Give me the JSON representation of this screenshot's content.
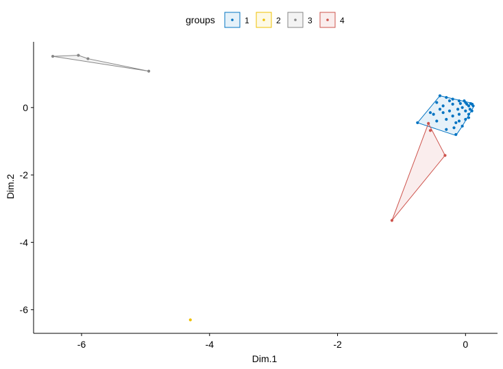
{
  "chart_data": {
    "type": "scatter",
    "title": "",
    "xlabel": "Dim.1",
    "ylabel": "Dim.2",
    "xlim": [
      -6.75,
      0.5
    ],
    "ylim": [
      -6.7,
      1.95
    ],
    "xticks": [
      -6,
      -4,
      -2,
      0
    ],
    "yticks": [
      0,
      -2,
      -4,
      -6
    ],
    "grid": false,
    "legend": {
      "title": "groups",
      "position": "top",
      "entries": [
        "1",
        "2",
        "3",
        "4"
      ]
    },
    "series": [
      {
        "name": "1",
        "color": "#0073C2",
        "points": [
          [
            -0.75,
            -0.45
          ],
          [
            -0.55,
            -0.15
          ],
          [
            -0.4,
            0.35
          ],
          [
            -0.3,
            0.3
          ],
          [
            -0.2,
            0.25
          ],
          [
            -0.1,
            0.2
          ],
          [
            0.0,
            0.15
          ],
          [
            0.1,
            0.1
          ],
          [
            0.12,
            0.05
          ],
          [
            0.1,
            -0.1
          ],
          [
            0.05,
            -0.3
          ],
          [
            -0.05,
            -0.55
          ],
          [
            -0.15,
            -0.8
          ],
          [
            -0.3,
            -0.65
          ],
          [
            -0.45,
            0.15
          ],
          [
            -0.5,
            -0.2
          ],
          [
            -0.45,
            -0.4
          ],
          [
            -0.35,
            -0.15
          ],
          [
            -0.3,
            -0.35
          ],
          [
            -0.25,
            -0.1
          ],
          [
            -0.2,
            0.1
          ],
          [
            -0.2,
            -0.25
          ],
          [
            -0.15,
            -0.45
          ],
          [
            -0.1,
            -0.2
          ],
          [
            -0.05,
            0.0
          ],
          [
            0.0,
            -0.1
          ],
          [
            0.05,
            0.05
          ],
          [
            0.05,
            -0.2
          ],
          [
            0.0,
            -0.35
          ],
          [
            -0.08,
            0.12
          ],
          [
            -0.12,
            -0.05
          ],
          [
            0.02,
            0.1
          ],
          [
            0.07,
            -0.05
          ],
          [
            -0.25,
            0.2
          ],
          [
            -0.35,
            0.05
          ],
          [
            -0.1,
            -0.4
          ],
          [
            0.08,
            0.12
          ],
          [
            -0.02,
            0.2
          ],
          [
            -0.18,
            -0.6
          ],
          [
            -0.4,
            -0.05
          ]
        ],
        "hull": [
          [
            -0.75,
            -0.45
          ],
          [
            -0.4,
            0.35
          ],
          [
            0.12,
            0.12
          ],
          [
            0.12,
            0.0
          ],
          [
            -0.05,
            -0.55
          ],
          [
            -0.15,
            -0.83
          ]
        ]
      },
      {
        "name": "2",
        "color": "#EFC000",
        "points": [
          [
            -4.3,
            -6.3
          ]
        ],
        "hull": []
      },
      {
        "name": "3",
        "color": "#868686",
        "points": [
          [
            -6.45,
            1.52
          ],
          [
            -6.05,
            1.55
          ],
          [
            -5.9,
            1.45
          ],
          [
            -4.95,
            1.08
          ]
        ],
        "hull": [
          [
            -6.45,
            1.52
          ],
          [
            -6.05,
            1.55
          ],
          [
            -5.9,
            1.45
          ],
          [
            -4.95,
            1.08
          ]
        ]
      },
      {
        "name": "4",
        "color": "#CD534C",
        "points": [
          [
            -1.15,
            -3.35
          ],
          [
            -0.58,
            -0.47
          ],
          [
            -0.55,
            -0.68
          ],
          [
            -0.32,
            -1.42
          ]
        ],
        "hull": [
          [
            -1.15,
            -3.35
          ],
          [
            -0.58,
            -0.47
          ],
          [
            -0.32,
            -1.42
          ]
        ]
      }
    ]
  }
}
